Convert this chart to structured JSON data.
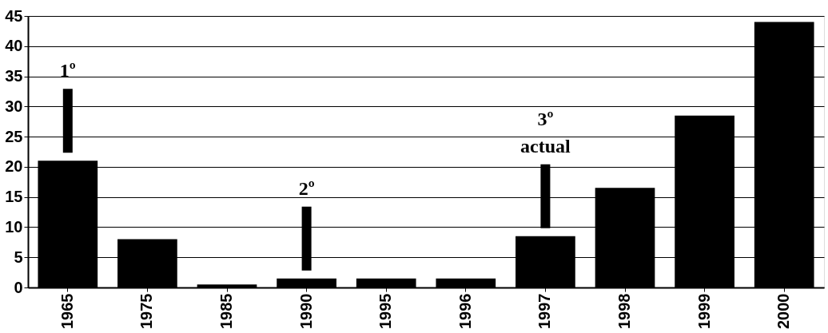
{
  "chart_data": {
    "type": "bar",
    "categories": [
      "1965",
      "1975",
      "1985",
      "1990",
      "1995",
      "1996",
      "1997",
      "1998",
      "1999",
      "2000"
    ],
    "values": [
      21,
      8,
      0.5,
      1.5,
      1.5,
      1.5,
      8.5,
      16.5,
      28.5,
      44
    ],
    "color": "#000000",
    "ylim": [
      0,
      45
    ],
    "yticks": [
      0,
      5,
      10,
      15,
      20,
      25,
      30,
      35,
      40,
      45
    ],
    "grid": "y",
    "annotations": [
      {
        "text": "1º",
        "x": "1965"
      },
      {
        "text": "2º",
        "x": "1990"
      },
      {
        "text": "3º actual",
        "x": "1997"
      }
    ]
  }
}
